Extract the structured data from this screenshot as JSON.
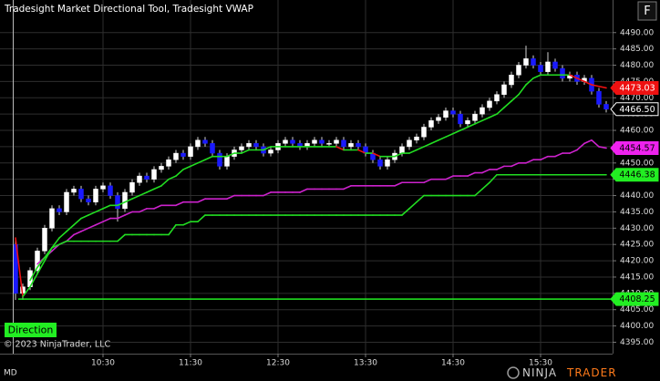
{
  "chart_data": {
    "type": "candlestick",
    "title": "Tradesight Market Directional Tool, Tradesight VWAP",
    "button": "F",
    "indicator_label": "Direction",
    "copyright": "© 2023 NinjaTrader, LLC",
    "instrument_code": "MD",
    "logo_left": "NINJA",
    "logo_right": "TRADER",
    "background": "#000000",
    "grid": true,
    "grid_color": "#2e2e2e",
    "up_color": "#ffffff",
    "down_color": "#1a1aff",
    "wick_color": "#cfcfcf",
    "ylim": [
      4391.5,
      4500
    ],
    "yticks": [
      {
        "value": 4395,
        "label": "4395.00"
      },
      {
        "value": 4400,
        "label": "4400.00"
      },
      {
        "value": 4405,
        "label": "4405.00"
      },
      {
        "value": 4410,
        "label": "4410.00"
      },
      {
        "value": 4415,
        "label": "4415.00"
      },
      {
        "value": 4420,
        "label": "4420.00"
      },
      {
        "value": 4425,
        "label": "4425.00"
      },
      {
        "value": 4430,
        "label": "4430.00"
      },
      {
        "value": 4435,
        "label": "4435.00"
      },
      {
        "value": 4440,
        "label": "4440.00"
      },
      {
        "value": 4445,
        "label": "4445.00"
      },
      {
        "value": 4450,
        "label": "4450.00"
      },
      {
        "value": 4455,
        "label": "4455.00"
      },
      {
        "value": 4460,
        "label": "4460.00"
      },
      {
        "value": 4465,
        "label": "4465.00"
      },
      {
        "value": 4470,
        "label": "4470.00"
      },
      {
        "value": 4475,
        "label": "4475.00"
      },
      {
        "value": 4480,
        "label": "4480.00"
      },
      {
        "value": 4485,
        "label": "4485.00"
      },
      {
        "value": 4490,
        "label": "4490.00"
      }
    ],
    "categories": [
      null,
      null,
      null,
      null,
      null,
      null,
      null,
      null,
      null,
      null,
      null,
      null,
      "10:30",
      null,
      null,
      null,
      null,
      null,
      null,
      null,
      null,
      null,
      null,
      null,
      "11:30",
      null,
      null,
      null,
      null,
      null,
      null,
      null,
      null,
      null,
      null,
      null,
      "12:30",
      null,
      null,
      null,
      null,
      null,
      null,
      null,
      null,
      null,
      null,
      null,
      "13:30",
      null,
      null,
      null,
      null,
      null,
      null,
      null,
      null,
      null,
      null,
      null,
      "14:30",
      null,
      null,
      null,
      null,
      null,
      null,
      null,
      null,
      null,
      null,
      null,
      "15:30",
      null,
      null,
      null,
      null,
      null,
      null,
      null,
      null,
      null
    ],
    "open": [
      4425,
      4410,
      4412,
      4417,
      4423,
      4430,
      4436,
      4435,
      4441,
      4442,
      4439,
      4438,
      4442,
      4443,
      4440,
      4436,
      4441,
      4444,
      4446,
      4445,
      4448,
      4449,
      4451,
      4453,
      4452,
      4455,
      4457,
      4456,
      4453,
      4449,
      4452,
      4454,
      4455,
      4456,
      4455,
      4453,
      4454,
      4456,
      4457,
      4456,
      4455,
      4456,
      4457,
      4456,
      4456,
      4457,
      4455,
      4456,
      4455,
      4453,
      4451,
      4449,
      4451,
      4453,
      4455,
      4457,
      4458,
      4461,
      4463,
      4464,
      4466,
      4465,
      4462,
      4463,
      4465,
      4467,
      4469,
      4471,
      4474,
      4477,
      4480,
      4482,
      4480,
      4478,
      4481,
      4479,
      4476,
      4477,
      4475,
      4476,
      4472,
      4468
    ],
    "high": [
      4427,
      4413,
      4418,
      4424,
      4431,
      4437,
      4437,
      4442,
      4443,
      4443,
      4440,
      4443,
      4444,
      4444,
      4441,
      4442,
      4445,
      4447,
      4447,
      4449,
      4450,
      4452,
      4454,
      4454,
      4456,
      4458,
      4458,
      4457,
      4454,
      4453,
      4455,
      4456,
      4457,
      4457,
      4456,
      4455,
      4457,
      4458,
      4458,
      4457,
      4457,
      4458,
      4458,
      4457,
      4458,
      4458,
      4457,
      4457,
      4456,
      4454,
      4452,
      4452,
      4454,
      4456,
      4458,
      4459,
      4462,
      4464,
      4465,
      4467,
      4467,
      4466,
      4464,
      4466,
      4468,
      4470,
      4472,
      4475,
      4478,
      4481,
      4486,
      4483,
      4481,
      4484,
      4482,
      4480,
      4478,
      4478,
      4477,
      4477,
      4473,
      4469
    ],
    "low": [
      4408,
      4408,
      4411,
      4416,
      4422,
      4429,
      4434,
      4434,
      4440,
      4438,
      4437,
      4437,
      4441,
      4439,
      4432,
      4435,
      4440,
      4443,
      4444,
      4444,
      4447,
      4448,
      4450,
      4451,
      4451,
      4454,
      4455,
      4452,
      4448,
      4448,
      4451,
      4453,
      4454,
      4454,
      4452,
      4452,
      4453,
      4455,
      4455,
      4454,
      4454,
      4455,
      4455,
      4455,
      4455,
      4454,
      4454,
      4454,
      4452,
      4450,
      4448,
      4448,
      4450,
      4452,
      4454,
      4456,
      4457,
      4460,
      4462,
      4463,
      4464,
      4461,
      4461,
      4462,
      4464,
      4466,
      4468,
      4470,
      4473,
      4476,
      4479,
      4479,
      4477,
      4477,
      4478,
      4475,
      4475,
      4474,
      4474,
      4471,
      4467,
      4465.5
    ],
    "close": [
      4410,
      4412,
      4417,
      4423,
      4430,
      4436,
      4435,
      4441,
      4442,
      4439,
      4438,
      4442,
      4443,
      4440,
      4436,
      4441,
      4444,
      4446,
      4445,
      4448,
      4449,
      4451,
      4453,
      4452,
      4455,
      4457,
      4456,
      4453,
      4449,
      4452,
      4454,
      4455,
      4456,
      4455,
      4453,
      4454,
      4456,
      4457,
      4456,
      4455,
      4456,
      4457,
      4456,
      4456,
      4457,
      4455,
      4456,
      4455,
      4453,
      4451,
      4449,
      4451,
      4453,
      4455,
      4457,
      4458,
      4461,
      4463,
      4464,
      4466,
      4465,
      4462,
      4463,
      4465,
      4467,
      4469,
      4471,
      4474,
      4477,
      4480,
      4482,
      4480,
      4478,
      4481,
      4479,
      4476,
      4477,
      4475,
      4476,
      4472,
      4468,
      4466.5
    ],
    "series": [
      {
        "color": "#cc22cc",
        "values": [
          null,
          null,
          null,
          4419,
          4421,
          4423,
          4425,
          4426,
          4428,
          4429,
          4430,
          4431,
          4432,
          4433,
          4433,
          4434,
          4435,
          4435,
          4436,
          4436,
          4437,
          4437,
          4437,
          4438,
          4438,
          4438,
          4439,
          4439,
          4439,
          4439,
          4440,
          4440,
          4440,
          4440,
          4440,
          4441,
          4441,
          4441,
          4441,
          4441,
          4442,
          4442,
          4442,
          4442,
          4442,
          4442,
          4443,
          4443,
          4443,
          4443,
          4443,
          4443,
          4443,
          4444,
          4444,
          4444,
          4444,
          4445,
          4445,
          4445,
          4446,
          4446,
          4446,
          4447,
          4447,
          4448,
          4448,
          4449,
          4449,
          4450,
          4450,
          4451,
          4451,
          4452,
          4452,
          4453,
          4453,
          4454,
          4456,
          4457,
          4455,
          4454.57
        ]
      },
      {
        "up_color": "#22dd22",
        "down_color": "#ee1111",
        "values": [
          4427,
          4409,
          4412,
          4416,
          4420,
          4424,
          4427,
          4429,
          4431,
          4433,
          4434,
          4435,
          4436,
          4437,
          4437,
          4438,
          4439,
          4440,
          4441,
          4442,
          4443,
          4445,
          4446,
          4448,
          4449,
          4450,
          4451,
          4452,
          4452,
          4452,
          4453,
          4453,
          4454,
          4454,
          4454,
          4455,
          4455,
          4455,
          4455,
          4455,
          4455,
          4455,
          4455,
          4455,
          4455,
          4454,
          4454,
          4454,
          4453,
          4453,
          4452,
          4452,
          4452,
          4453,
          4453,
          4454,
          4455,
          4456,
          4457,
          4458,
          4459,
          4460,
          4461,
          4462,
          4463,
          4464,
          4465,
          4467,
          4469,
          4471,
          4474,
          4476,
          4477,
          4477,
          4477,
          4477,
          4477,
          4476,
          4475,
          4474,
          4473.5,
          4473.03
        ]
      },
      {
        "color": "#22dd22",
        "values": [
          null,
          null,
          4414,
          4418,
          4421,
          4424,
          4425,
          4426,
          4426,
          4426,
          4426,
          4426,
          4426,
          4426,
          4426,
          4428,
          4428,
          4428,
          4428,
          4428,
          4428,
          4428,
          4431,
          4431,
          4432,
          4432,
          4434,
          4434,
          4434,
          4434,
          4434,
          4434,
          4434,
          4434,
          4434,
          4434,
          4434,
          4434,
          4434,
          4434,
          4434,
          4434,
          4434,
          4434,
          4434,
          4434,
          4434,
          4434,
          4434,
          4434,
          4434,
          4434,
          4434,
          4434,
          4436,
          4438,
          4440,
          4440,
          4440,
          4440,
          4440,
          4440,
          4440,
          4440,
          4442,
          4444,
          4446.38,
          4446.38,
          4446.38,
          4446.38,
          4446.38,
          4446.38,
          4446.38,
          4446.38,
          4446.38,
          4446.38,
          4446.38,
          4446.38,
          4446.38,
          4446.38,
          4446.38,
          4446.38
        ]
      }
    ],
    "price_markers": [
      {
        "value": 4473.03,
        "label": "4473.03",
        "color": "#ee1111",
        "text_color": "#ffffff"
      },
      {
        "value": 4466.5,
        "label": "4466.50",
        "color": "#000000",
        "text_color": "#ffffff"
      },
      {
        "value": 4454.57,
        "label": "4454.57",
        "color": "#ee22ee",
        "text_color": "#000000"
      },
      {
        "value": 4446.38,
        "label": "4446.38",
        "color": "#22ee22",
        "text_color": "#000000"
      },
      {
        "value": 4408.25,
        "label": "4408.25",
        "color": "#22ee22",
        "text_color": "#000000",
        "line": true
      }
    ]
  }
}
